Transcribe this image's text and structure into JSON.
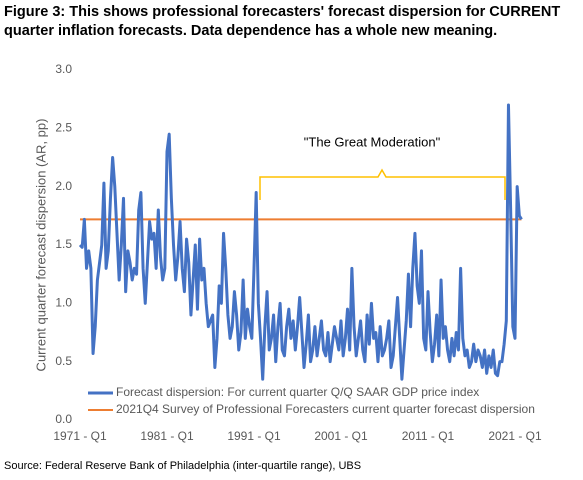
{
  "chart_data": {
    "type": "line",
    "title": "Figure 3: This shows professional forecasters' forecast dispersion for CURRENT",
    "subtitle": "quarter inflation forecasts. Data dependence has a whole new meaning.",
    "y_label": "Current quarter forecast dispersion (AR, pp)",
    "source": "Source: Federal Reserve Bank of Philadelphia (inter-quartile range), UBS",
    "annotation": "\"The Great Moderation\"",
    "ylim": [
      0,
      3
    ],
    "yticks": [
      {
        "value": 0,
        "label": "0.0"
      },
      0.5,
      {
        "value": 1,
        "label": "1.0"
      },
      1.5,
      {
        "value": 2,
        "label": "2.0"
      },
      2.5,
      {
        "value": 3,
        "label": "3.0"
      }
    ],
    "grid": false,
    "categories": [
      "1971 - Q1",
      null,
      null,
      null,
      null,
      null,
      null,
      null,
      null,
      null,
      null,
      null,
      null,
      null,
      null,
      null,
      null,
      null,
      null,
      null,
      null,
      null,
      null,
      null,
      null,
      null,
      null,
      null,
      null,
      null,
      null,
      null,
      null,
      null,
      null,
      null,
      null,
      null,
      null,
      null,
      "1981 - Q1",
      null,
      null,
      null,
      null,
      null,
      null,
      null,
      null,
      null,
      null,
      null,
      null,
      null,
      null,
      null,
      null,
      null,
      null,
      null,
      null,
      null,
      null,
      null,
      null,
      null,
      null,
      null,
      null,
      null,
      null,
      null,
      null,
      null,
      null,
      null,
      null,
      null,
      null,
      null,
      "1991 - Q1",
      null,
      null,
      null,
      null,
      null,
      null,
      null,
      null,
      null,
      null,
      null,
      null,
      null,
      null,
      null,
      null,
      null,
      null,
      null,
      null,
      null,
      null,
      null,
      null,
      null,
      null,
      null,
      null,
      null,
      null,
      null,
      null,
      null,
      null,
      null,
      null,
      null,
      null,
      null,
      "2001 - Q1",
      null,
      null,
      null,
      null,
      null,
      null,
      null,
      null,
      null,
      null,
      null,
      null,
      null,
      null,
      null,
      null,
      null,
      null,
      null,
      null,
      null,
      null,
      null,
      null,
      null,
      null,
      null,
      null,
      null,
      null,
      null,
      null,
      null,
      null,
      null,
      null,
      null,
      null,
      null,
      "2011 - Q1",
      null,
      null,
      null,
      null,
      null,
      null,
      null,
      null,
      null,
      null,
      null,
      null,
      null,
      null,
      null,
      null,
      null,
      null,
      null,
      null,
      null,
      null,
      null,
      null,
      null,
      null,
      null,
      null,
      null,
      null,
      null,
      null,
      null,
      null,
      null,
      null,
      null,
      null,
      null,
      "2021 - Q1",
      null,
      null,
      null
    ],
    "series": [
      {
        "name": "Forecast dispersion: For current quarter Q/Q SAAR GDP price index",
        "color": "#4472c4",
        "values": [
          1.5,
          1.48,
          1.72,
          1.3,
          1.45,
          1.3,
          0.57,
          0.8,
          1.2,
          1.35,
          1.5,
          2.03,
          1.3,
          1.45,
          1.9,
          2.25,
          2.0,
          1.6,
          1.2,
          1.5,
          1.9,
          1.1,
          1.45,
          1.35,
          1.2,
          1.3,
          1.25,
          1.8,
          1.95,
          1.3,
          1.0,
          1.35,
          1.7,
          1.55,
          1.6,
          1.3,
          1.8,
          1.4,
          1.2,
          1.3,
          2.3,
          2.45,
          1.9,
          1.5,
          1.2,
          1.4,
          1.7,
          1.3,
          1.1,
          1.55,
          1.35,
          0.9,
          1.2,
          1.5,
          0.95,
          1.55,
          1.2,
          1.3,
          1.0,
          0.8,
          0.85,
          0.9,
          0.45,
          0.7,
          1.15,
          1.0,
          1.6,
          1.3,
          0.9,
          0.7,
          0.8,
          1.1,
          0.9,
          0.6,
          0.75,
          1.2,
          0.7,
          0.95,
          0.8,
          0.7,
          1.3,
          1.95,
          1.0,
          0.7,
          0.35,
          0.8,
          1.1,
          0.6,
          0.7,
          0.9,
          0.5,
          0.8,
          1.0,
          0.6,
          0.55,
          0.8,
          0.95,
          0.7,
          0.85,
          0.6,
          0.8,
          1.05,
          0.75,
          0.45,
          0.65,
          0.9,
          0.5,
          0.6,
          0.8,
          0.55,
          0.7,
          0.85,
          0.6,
          0.55,
          0.75,
          0.5,
          0.65,
          0.8,
          0.7,
          0.6,
          0.85,
          0.55,
          0.7,
          0.95,
          0.6,
          1.3,
          0.8,
          0.55,
          0.7,
          0.85,
          0.6,
          0.5,
          0.9,
          0.65,
          1.0,
          0.7,
          0.75,
          0.5,
          0.8,
          0.55,
          0.6,
          0.7,
          0.85,
          0.45,
          0.55,
          0.8,
          1.05,
          0.7,
          0.35,
          0.6,
          0.85,
          1.25,
          0.8,
          1.3,
          1.6,
          1.15,
          1.0,
          1.45,
          0.7,
          0.6,
          1.1,
          0.75,
          0.5,
          0.65,
          0.9,
          0.55,
          1.2,
          0.7,
          0.8,
          0.6,
          0.5,
          0.7,
          0.55,
          0.75,
          0.6,
          1.3,
          0.7,
          0.55,
          0.6,
          0.45,
          0.5,
          0.65,
          0.5,
          0.6,
          0.55,
          0.45,
          0.6,
          0.4,
          0.55,
          0.45,
          0.6,
          0.4,
          0.38,
          0.5,
          0.5,
          0.65,
          0.85,
          2.7,
          1.8,
          0.8,
          0.7,
          2.0,
          1.75,
          1.72
        ]
      }
    ],
    "reference_line": {
      "name": "2021Q4 Survey of Professional Forecasters current quarter forecast dispersion",
      "color": "#ed7d31",
      "value": 1.72
    }
  }
}
